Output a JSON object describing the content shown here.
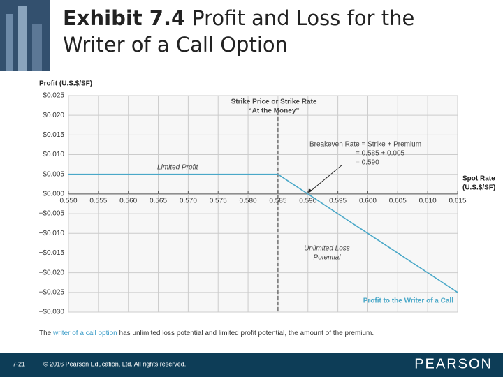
{
  "slide": {
    "exhibit": "Exhibit 7.4",
    "title": [
      "Profit and Loss for the",
      "Writer of a Call Option"
    ],
    "caption": [
      "The",
      "writer of a call option",
      "has unlimited loss potential and limited profit potential, the amount of the premium."
    ],
    "footer": {
      "page": "7-21",
      "copyright": "© 2016 Pearson Education, Ltd. All rights reserved.",
      "logo": "PEARSON"
    }
  },
  "chart_data": {
    "type": "line",
    "y_label": "Profit (U.S.$/SF)",
    "x_label": [
      "Spot Rate",
      "(U.S.$/SF)"
    ],
    "x": [
      0.55,
      0.585,
      0.615
    ],
    "series": [
      {
        "name": "Profit to the Writer of a Call",
        "color": "#4aa8c8",
        "values": [
          0.005,
          0.005,
          -0.025
        ]
      }
    ],
    "vlines": [
      0.585
    ],
    "xlim": [
      0.55,
      0.615
    ],
    "ylim": [
      -0.03,
      0.025
    ],
    "grid": true,
    "xticks": [
      {
        "value": 0.55,
        "label": "0.550"
      },
      0.555,
      {
        "value": 0.56,
        "label": "0.560"
      },
      0.565,
      {
        "value": 0.57,
        "label": "0.570"
      },
      0.575,
      {
        "value": 0.58,
        "label": "0.580"
      },
      0.585,
      {
        "value": 0.59,
        "label": "0.590"
      },
      0.595,
      {
        "value": 0.6,
        "label": "0.600"
      },
      0.605,
      {
        "value": 0.61,
        "label": "0.610"
      },
      0.615
    ],
    "yticks": [
      {
        "value": 0.025,
        "label": "$0.025"
      },
      {
        "value": 0.02,
        "label": "$0.020"
      },
      {
        "value": 0.015,
        "label": "$0.015"
      },
      {
        "value": 0.01,
        "label": "$0.010"
      },
      {
        "value": 0.005,
        "label": "$0.005"
      },
      {
        "value": 0,
        "label": "$0.000"
      },
      {
        "value": -0.005,
        "label": "−$0.005"
      },
      {
        "value": -0.01,
        "label": "−$0.010"
      },
      {
        "value": -0.015,
        "label": "−$0.015"
      },
      {
        "value": -0.02,
        "label": "−$0.020"
      },
      {
        "value": -0.025,
        "label": "−$0.025"
      },
      {
        "value": -0.03,
        "label": "−$0.030"
      }
    ],
    "annotations": [
      "Strike Price or Strike Rate",
      "“At the Money”",
      "Breakeven Rate = Strike + Premium",
      "= 0.585 + 0.005",
      "= 0.590",
      "Limited Profit",
      "Unlimited Loss",
      "Potential"
    ]
  }
}
